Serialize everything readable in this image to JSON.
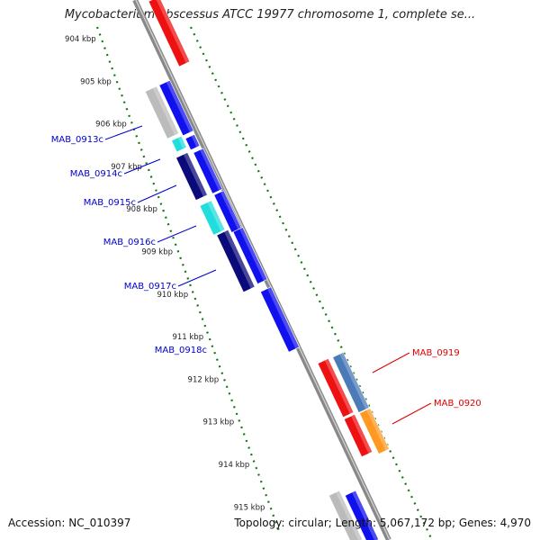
{
  "title": "Mycobacterium abscessus ATCC 19977 chromosome 1, complete se...",
  "footer": {
    "accession": "Accession: NC_010397",
    "summary": "Topology: circular; Length: 5,067,172 bp; Genes: 4,970"
  },
  "scale": {
    "ticks": [
      "904 kbp",
      "905 kbp",
      "906 kbp",
      "907 kbp",
      "908 kbp",
      "909 kbp",
      "910 kbp",
      "911 kbp",
      "912 kbp",
      "913 kbp",
      "914 kbp",
      "915 kbp"
    ]
  },
  "colors": {
    "red": "#ee1111",
    "blue": "#1111ee",
    "navy": "#0a0a7a",
    "cyan": "#22dddd",
    "gray": "#bbbbbb",
    "steelblue": "#4a7ab8",
    "orange": "#ff9922",
    "backbone": "#888888",
    "tick_green": "#117711",
    "label_blue": "#0000cc",
    "label_red": "#dd0000"
  },
  "genes": [
    {
      "label": "MAB_0913c",
      "color": "label_blue"
    },
    {
      "label": "MAB_0914c",
      "color": "label_blue"
    },
    {
      "label": "MAB_0915c",
      "color": "label_blue"
    },
    {
      "label": "MAB_0916c",
      "color": "label_blue"
    },
    {
      "label": "MAB_0917c",
      "color": "label_blue"
    },
    {
      "label": "MAB_0918c",
      "color": "label_blue"
    },
    {
      "label": "MAB_0919",
      "color": "label_red"
    },
    {
      "label": "MAB_0920",
      "color": "label_red"
    }
  ]
}
